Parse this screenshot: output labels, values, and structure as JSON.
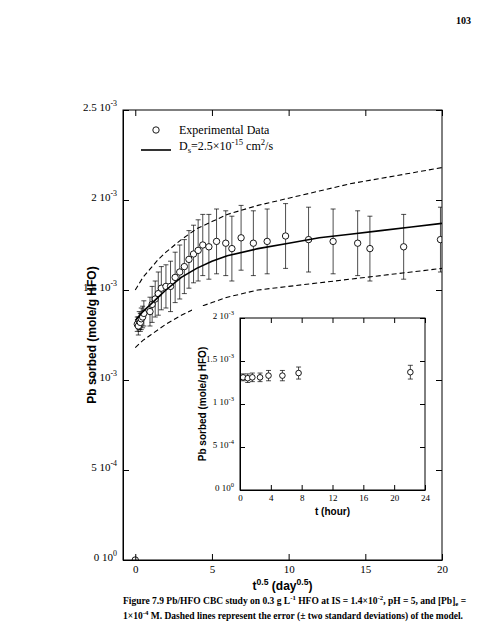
{
  "page_number": "103",
  "caption": [
    [
      "Figure 7.9 Pb/HFO CBC study on 0.3 g L",
      {
        "sup": "-1"
      },
      " HFO at IS = 1.4×10",
      {
        "sup": "-2"
      },
      ", pH = 5, and [Pb]",
      {
        "sub": "e"
      },
      " ="
    ],
    [
      "1×10",
      {
        "sup": "-4"
      },
      " M. Dashed lines represent the error (± two standard deviations) of the model."
    ]
  ],
  "chart_data": [
    {
      "type": "scatter",
      "xlabel": [
        "t",
        {
          "sup": "0.5"
        },
        " (day",
        {
          "sup": "0.5"
        },
        ")"
      ],
      "ylabel": "Pb sorbed (mole/g HFO)",
      "xlim": [
        -0.8,
        20
      ],
      "ylim": [
        0,
        0.0025
      ],
      "xticks": [
        0,
        5,
        10,
        15,
        20
      ],
      "yticks": [
        {
          "value": 0,
          "label": [
            "0 10",
            {
              "sup": "0"
            }
          ]
        },
        {
          "value": 0.0005,
          "label": [
            "5 10",
            {
              "sup": "-4"
            }
          ]
        },
        {
          "value": 0.001,
          "label": [
            "1 10",
            {
              "sup": "-3"
            }
          ]
        },
        {
          "value": 0.0015,
          "label": [
            "1.5 10",
            {
              "sup": "-3"
            }
          ]
        },
        {
          "value": 0.002,
          "label": [
            "2 10",
            {
              "sup": "-3"
            }
          ]
        },
        {
          "value": 0.0025,
          "label": [
            "2.5 10",
            {
              "sup": "-3"
            }
          ]
        }
      ],
      "legend": "upper left",
      "series": [
        {
          "name": "Experimental Data",
          "type": "scatter",
          "marker": "circle",
          "color": "#000000",
          "x": [
            0,
            0.13,
            0.2,
            0.26,
            0.33,
            0.39,
            0.48,
            0.56,
            0.96,
            1.1,
            1.3,
            1.5,
            1.7,
            2.0,
            2.3,
            2.6,
            2.9,
            3.2,
            3.5,
            3.8,
            4.1,
            4.4,
            4.8,
            5.3,
            5.9,
            6.3,
            6.9,
            7.7,
            8.6,
            9.8,
            11.3,
            12.9,
            14.5,
            15.3,
            17.5,
            19.9
          ],
          "values": [
            0,
            0.00131,
            0.0013,
            0.00133,
            0.00132,
            0.00134,
            0.00135,
            0.00137,
            0.00138,
            0.00142,
            0.00145,
            0.00148,
            0.00151,
            0.00152,
            0.00152,
            0.00157,
            0.0016,
            0.00163,
            0.00167,
            0.0017,
            0.00172,
            0.00175,
            0.00174,
            0.00177,
            0.00176,
            0.00173,
            0.00179,
            0.00176,
            0.00177,
            0.0018,
            0.00178,
            0.00177,
            0.00176,
            0.00173,
            0.00174,
            0.00178
          ],
          "errors": [
            0,
            4e-05,
            5e-05,
            5e-05,
            5e-05,
            6e-05,
            6e-05,
            7e-05,
            8e-05,
            0.0001,
            0.0001,
            0.00012,
            0.00012,
            0.00012,
            0.00014,
            0.00014,
            0.00015,
            0.00015,
            0.00016,
            0.00016,
            0.00017,
            0.00017,
            0.00018,
            0.00018,
            0.00018,
            0.00018,
            0.00018,
            0.00018,
            0.00018,
            0.00018,
            0.00018,
            0.00018,
            0.00018,
            0.00018,
            0.00018,
            0.00018
          ]
        },
        {
          "name": [
            "D",
            {
              "sub": "s"
            },
            "=2.5×10",
            {
              "sup": "-15"
            },
            " cm",
            {
              "sup": "2"
            },
            "/s"
          ],
          "type": "line",
          "line_style": "solid",
          "color": "#000000",
          "x": [
            0,
            0.5,
            1,
            1.5,
            2,
            3,
            4,
            5,
            6,
            8,
            10,
            12,
            14,
            16,
            18,
            20
          ],
          "values": [
            0.00133,
            0.00138,
            0.00142,
            0.00146,
            0.0015,
            0.00157,
            0.00162,
            0.00166,
            0.00169,
            0.00173,
            0.00176,
            0.00179,
            0.00181,
            0.00183,
            0.00185,
            0.00187
          ]
        },
        {
          "type": "line",
          "line_style": "dashed",
          "color": "#000000",
          "x": [
            0,
            0.5,
            1,
            1.5,
            2,
            3,
            4,
            5,
            6,
            8,
            10,
            12,
            14,
            16,
            18,
            20
          ],
          "values": [
            0.0015,
            0.00157,
            0.00162,
            0.00167,
            0.00171,
            0.00178,
            0.00184,
            0.00188,
            0.00192,
            0.00197,
            0.00201,
            0.00205,
            0.00209,
            0.00212,
            0.00215,
            0.00218
          ]
        },
        {
          "type": "line",
          "line_style": "dashed",
          "color": "#000000",
          "x": [
            0,
            0.5,
            1,
            1.5,
            2,
            3,
            4,
            5,
            6,
            8,
            10,
            12,
            14,
            16,
            18,
            20
          ],
          "values": [
            0.00118,
            0.00122,
            0.00125,
            0.00128,
            0.00131,
            0.00136,
            0.0014,
            0.00143,
            0.00146,
            0.0015,
            0.00152,
            0.00154,
            0.00156,
            0.00158,
            0.0016,
            0.00162
          ]
        }
      ]
    },
    {
      "type": "scatter",
      "xlabel": "t (hour)",
      "ylabel": "Pb sorbed (mole/g HFO)",
      "xlim": [
        0,
        24
      ],
      "ylim": [
        0,
        0.002
      ],
      "xticks": [
        0,
        4,
        8,
        12,
        16,
        20,
        24
      ],
      "yticks": [
        {
          "value": 0,
          "label": [
            "0 10",
            {
              "sup": "0"
            }
          ]
        },
        {
          "value": 0.0005,
          "label": [
            "5 10",
            {
              "sup": "-4"
            }
          ]
        },
        {
          "value": 0.001,
          "label": [
            "1 10",
            {
              "sup": "-3"
            }
          ]
        },
        {
          "value": 0.0015,
          "label": [
            "1.5 10",
            {
              "sup": "-3"
            }
          ]
        },
        {
          "value": 0.002,
          "label": [
            "2 10",
            {
              "sup": "-3"
            }
          ]
        }
      ],
      "series": [
        {
          "type": "scatter",
          "marker": "circle",
          "color": "#000000",
          "x": [
            0.4,
            1,
            1.6,
            2.6,
            3.7,
            5.5,
            7.6,
            22.1
          ],
          "values": [
            0.00131,
            0.0013,
            0.00131,
            0.00131,
            0.00133,
            0.00133,
            0.00136,
            0.00137
          ],
          "errors": [
            4e-05,
            5e-05,
            5e-05,
            5e-05,
            6e-05,
            6e-05,
            7e-05,
            8e-05
          ]
        }
      ]
    }
  ]
}
